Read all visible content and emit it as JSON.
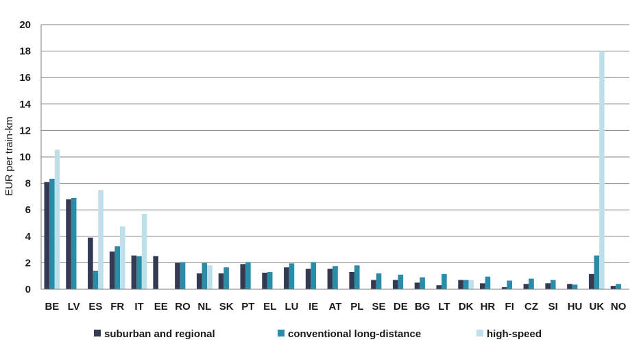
{
  "chart_data": {
    "type": "bar",
    "title": "",
    "xlabel": "",
    "ylabel": "EUR per train-km",
    "ylim": [
      0,
      20
    ],
    "yticks": [
      0,
      2,
      4,
      6,
      8,
      10,
      12,
      14,
      16,
      18,
      20
    ],
    "grid": true,
    "legend_position": "bottom",
    "categories": [
      "BE",
      "LV",
      "ES",
      "FR",
      "IT",
      "EE",
      "RO",
      "NL",
      "SK",
      "PT",
      "EL",
      "LU",
      "IE",
      "AT",
      "PL",
      "SE",
      "DE",
      "BG",
      "LT",
      "DK",
      "HR",
      "FI",
      "CZ",
      "SI",
      "HU",
      "UK",
      "NO"
    ],
    "series": [
      {
        "name": "suburban and regional",
        "color": "#333a52",
        "values": [
          8.1,
          6.8,
          3.9,
          2.85,
          2.55,
          2.5,
          2.0,
          1.2,
          1.2,
          1.9,
          1.25,
          1.65,
          1.55,
          1.55,
          1.3,
          0.7,
          0.7,
          0.5,
          0.3,
          0.7,
          0.45,
          0.15,
          0.4,
          0.45,
          0.4,
          1.15,
          0.25
        ]
      },
      {
        "name": "conventional long-distance",
        "color": "#2a8ca6",
        "values": [
          8.35,
          6.9,
          1.4,
          3.25,
          2.5,
          null,
          2.05,
          2.0,
          1.65,
          2.05,
          1.3,
          1.95,
          2.05,
          1.75,
          1.8,
          1.2,
          1.1,
          0.9,
          1.15,
          0.7,
          0.95,
          0.65,
          0.8,
          0.7,
          0.35,
          2.55,
          0.4
        ]
      },
      {
        "name": "high-speed",
        "color": "#bde0ea",
        "values": [
          10.55,
          null,
          7.5,
          4.75,
          5.7,
          null,
          null,
          1.8,
          null,
          null,
          null,
          null,
          null,
          null,
          null,
          null,
          null,
          null,
          null,
          0.7,
          null,
          null,
          null,
          null,
          null,
          18.0,
          null
        ]
      }
    ]
  }
}
